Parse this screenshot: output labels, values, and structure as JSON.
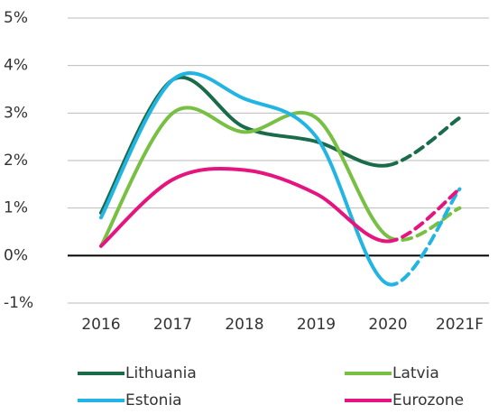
{
  "chart_data": {
    "type": "line",
    "categories": [
      "2016",
      "2017",
      "2018",
      "2019",
      "2020",
      "2021F"
    ],
    "series": [
      {
        "name": "Lithuania",
        "color": "#1a6b4a",
        "values": [
          0.9,
          3.7,
          2.7,
          2.4,
          1.9,
          2.9
        ]
      },
      {
        "name": "Latvia",
        "color": "#77c043",
        "values": [
          0.2,
          3.0,
          2.6,
          2.9,
          0.4,
          1.0
        ]
      },
      {
        "name": "Estonia",
        "color": "#22b5e3",
        "values": [
          0.8,
          3.7,
          3.3,
          2.5,
          -0.6,
          1.4
        ]
      },
      {
        "name": "Eurozone",
        "color": "#e5147f",
        "values": [
          0.2,
          1.6,
          1.8,
          1.3,
          0.3,
          1.4
        ]
      }
    ],
    "ylim": [
      -1,
      5
    ],
    "yticks": [
      {
        "value": 5,
        "label": "5%"
      },
      {
        "value": 4,
        "label": "4%"
      },
      {
        "value": 3,
        "label": "3%"
      },
      {
        "value": 2,
        "label": "2%"
      },
      {
        "value": 1,
        "label": "1%"
      },
      {
        "value": 0,
        "label": "0%"
      },
      {
        "value": -1,
        "label": "-1%"
      }
    ],
    "grid": true
  }
}
